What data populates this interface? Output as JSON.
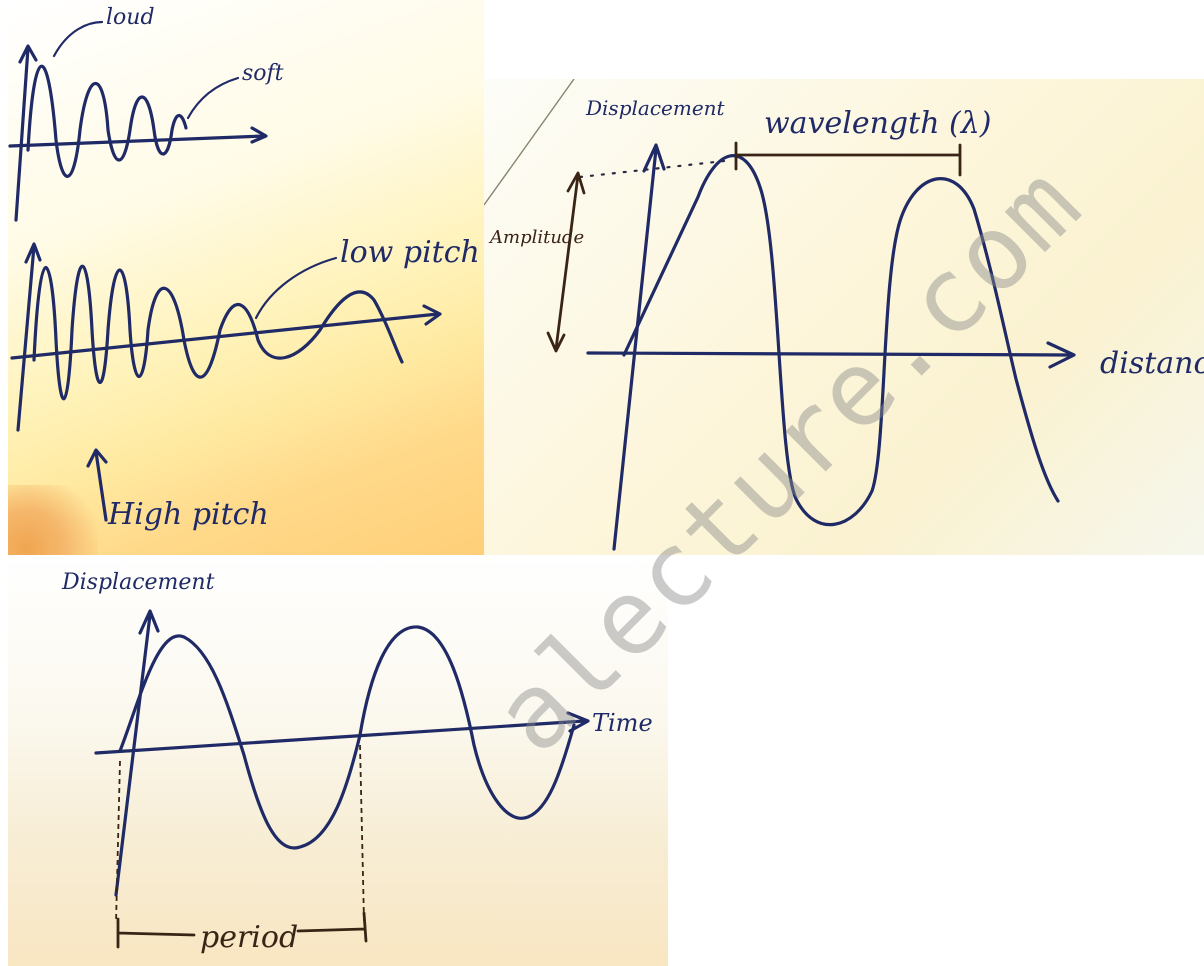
{
  "panel_loud_soft": {
    "label_loud": "loud",
    "label_soft": "soft"
  },
  "panel_pitch": {
    "label_low_pitch": "low pitch",
    "label_high_pitch": "High pitch"
  },
  "panel_wavelength": {
    "ylabel": "Displacement",
    "xlabel": "distance",
    "label_wavelength": "wavelength (λ)",
    "label_amplitude": "Amplitude"
  },
  "panel_period": {
    "ylabel": "Displacement",
    "xlabel": "Time",
    "label_period": "period"
  },
  "watermark": "alecture.com",
  "colors": {
    "ink": "#1f2a66",
    "brown_ink": "#3a2416"
  }
}
